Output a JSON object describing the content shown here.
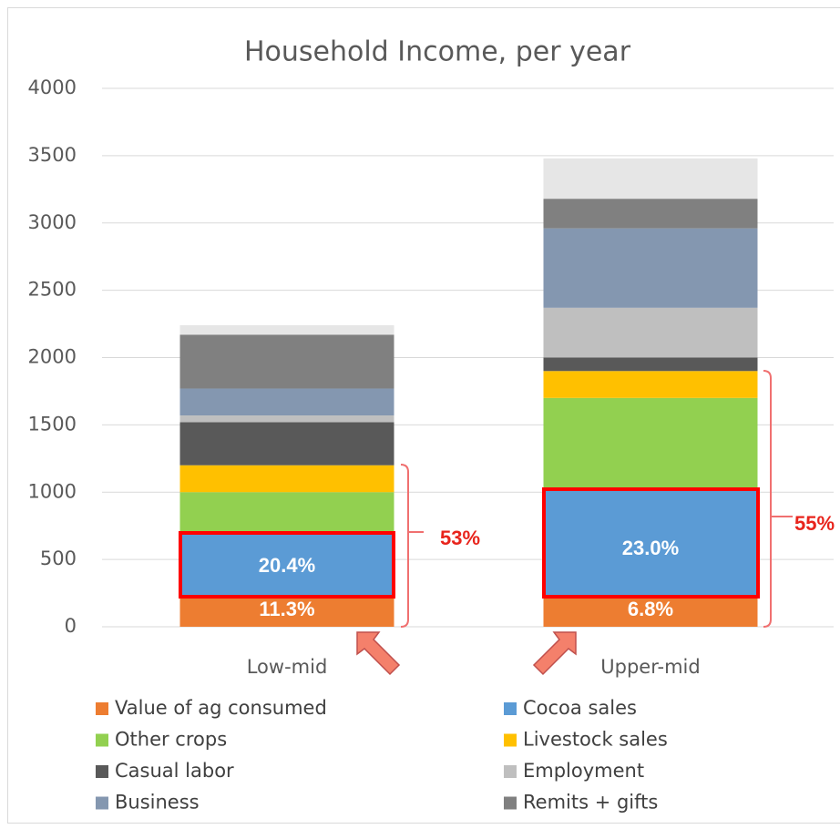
{
  "chart_data": {
    "type": "stacked_bar",
    "title": "Household Income, per year",
    "categories": [
      "Low-mid",
      "Upper-mid"
    ],
    "series": [
      {
        "name": "Value of ag consumed",
        "color": "#ed7d31",
        "values": [
          225,
          235
        ]
      },
      {
        "name": "Cocoa sales",
        "color": "#5b9bd5",
        "values": [
          475,
          800
        ]
      },
      {
        "name": "Other crops",
        "color": "#92d050",
        "values": [
          300,
          665
        ]
      },
      {
        "name": "Livestock sales",
        "color": "#ffc000",
        "values": [
          200,
          200
        ]
      },
      {
        "name": "Casual labor",
        "color": "#595959",
        "values": [
          320,
          100
        ]
      },
      {
        "name": "Employment",
        "color": "#bfbfbf",
        "values": [
          50,
          370
        ]
      },
      {
        "name": "Business",
        "color": "#8497b0",
        "values": [
          200,
          590
        ]
      },
      {
        "name": "Remits + gifts",
        "color": "#808080",
        "values": [
          400,
          220
        ]
      },
      {
        "color": "#e6e6e6",
        "values": [
          70,
          300
        ]
      }
    ],
    "annotations": [
      "11.3%",
      "20.4%",
      "53%",
      "6.8%",
      "23.0%",
      "55%"
    ],
    "ylim": [
      0,
      4000
    ],
    "yticks": [
      0,
      500,
      1000,
      1500,
      2000,
      2500,
      3000,
      3500,
      4000
    ],
    "grid": true
  }
}
